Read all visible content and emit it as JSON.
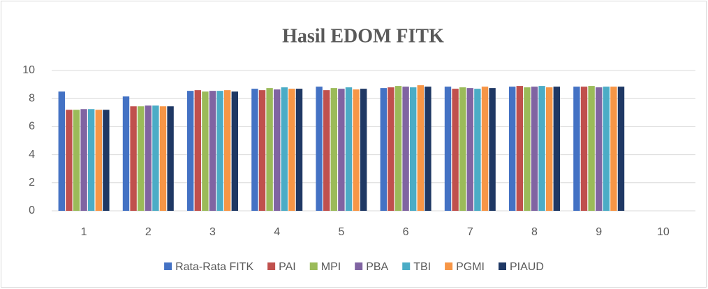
{
  "chart_data": {
    "type": "bar",
    "title": "Hasil EDOM FITK",
    "categories": [
      "1",
      "2",
      "3",
      "4",
      "5",
      "6",
      "7",
      "8",
      "9",
      "10"
    ],
    "ylim": [
      0,
      10
    ],
    "yticks": [
      0,
      2,
      4,
      6,
      8,
      10
    ],
    "grid": true,
    "legend": "bottom",
    "series": [
      {
        "name": "Rata-Rata FITK",
        "color": "#4472c4",
        "values": [
          8.5,
          8.15,
          8.55,
          8.7,
          8.85,
          8.75,
          8.85,
          8.85,
          8.85,
          null
        ]
      },
      {
        "name": "PAI",
        "color": "#c0504d",
        "values": [
          7.2,
          7.45,
          8.6,
          8.6,
          8.6,
          8.8,
          8.7,
          8.9,
          8.85,
          null
        ]
      },
      {
        "name": "MPI",
        "color": "#9bbb59",
        "values": [
          7.2,
          7.45,
          8.5,
          8.75,
          8.75,
          8.9,
          8.8,
          8.8,
          8.9,
          null
        ]
      },
      {
        "name": "PBA",
        "color": "#8064a2",
        "values": [
          7.25,
          7.5,
          8.55,
          8.65,
          8.7,
          8.85,
          8.75,
          8.85,
          8.8,
          null
        ]
      },
      {
        "name": "TBI",
        "color": "#4bacc6",
        "values": [
          7.25,
          7.5,
          8.55,
          8.8,
          8.8,
          8.8,
          8.7,
          8.9,
          8.85,
          null
        ]
      },
      {
        "name": "PGMI",
        "color": "#f79646",
        "values": [
          7.2,
          7.45,
          8.6,
          8.7,
          8.65,
          8.95,
          8.85,
          8.8,
          8.85,
          null
        ]
      },
      {
        "name": "PIAUD",
        "color": "#1f3864",
        "values": [
          7.2,
          7.45,
          8.5,
          8.7,
          8.7,
          8.85,
          8.75,
          8.85,
          8.85,
          null
        ]
      }
    ]
  }
}
